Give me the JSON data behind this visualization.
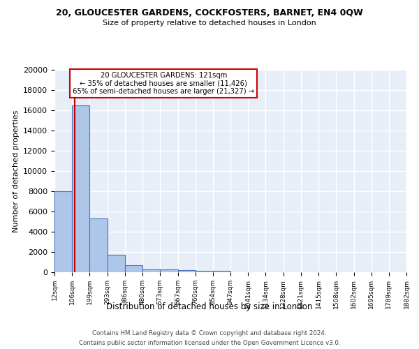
{
  "title1": "20, GLOUCESTER GARDENS, COCKFOSTERS, BARNET, EN4 0QW",
  "title2": "Size of property relative to detached houses in London",
  "xlabel": "Distribution of detached houses by size in London",
  "ylabel": "Number of detached properties",
  "bin_edges": [
    12,
    106,
    199,
    293,
    386,
    480,
    573,
    667,
    760,
    854,
    947,
    1041,
    1134,
    1228,
    1321,
    1415,
    1508,
    1602,
    1695,
    1789,
    1882
  ],
  "bar_heights": [
    8000,
    16500,
    5300,
    1750,
    700,
    300,
    250,
    200,
    150,
    150,
    0,
    0,
    0,
    0,
    0,
    0,
    0,
    0,
    0,
    0
  ],
  "bar_color": "#aec6e8",
  "bar_edge_color": "#4472c4",
  "property_size": 121,
  "property_line_color": "#cc0000",
  "annotation_text": "20 GLOUCESTER GARDENS: 121sqm\n← 35% of detached houses are smaller (11,426)\n65% of semi-detached houses are larger (21,327) →",
  "annotation_box_color": "#cc0000",
  "ylim": [
    0,
    20000
  ],
  "yticks": [
    0,
    2000,
    4000,
    6000,
    8000,
    10000,
    12000,
    14000,
    16000,
    18000,
    20000
  ],
  "background_color": "#e8eef8",
  "grid_color": "#ffffff",
  "footnote1": "Contains HM Land Registry data © Crown copyright and database right 2024.",
  "footnote2": "Contains public sector information licensed under the Open Government Licence v3.0."
}
